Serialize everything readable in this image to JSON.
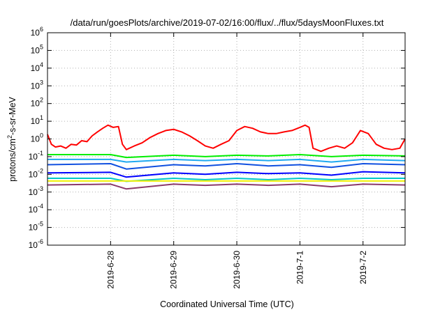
{
  "chart_data": {
    "type": "line",
    "title": "/data/run/goesPlots/archive/2019-07-02/16:00/flux/../flux/5daysMoonFluxes.txt",
    "xlabel": "Coordinated Universal Time (UTC)",
    "ylabel": "protons/cm2-s-sr-MeV",
    "ylabel_parts": [
      "protons/cm",
      "2",
      "-s-sr-MeV"
    ],
    "y_scale": "log",
    "ylim": [
      1e-06,
      1000000.0
    ],
    "x_unit": "days",
    "xlim": [
      "2019-06-27T00:00",
      "2019-07-02T16:00"
    ],
    "x_ticks": [
      {
        "value": "2019-06-28T00:00",
        "label": "2019-6-28"
      },
      {
        "value": "2019-06-29T00:00",
        "label": "2019-6-29"
      },
      {
        "value": "2019-06-30T00:00",
        "label": "2019-6-30"
      },
      {
        "value": "2019-07-01T00:00",
        "label": "2019-7-1"
      },
      {
        "value": "2019-07-02T00:00",
        "label": "2019-7-2"
      }
    ],
    "y_ticks": [
      {
        "exp": -6,
        "base": "10",
        "sup": "-6"
      },
      {
        "exp": -5,
        "base": "10",
        "sup": "-5"
      },
      {
        "exp": -4,
        "base": "10",
        "sup": "-4"
      },
      {
        "exp": -3,
        "base": "10",
        "sup": "-3"
      },
      {
        "exp": -2,
        "base": "10",
        "sup": "-2"
      },
      {
        "exp": -1,
        "base": "10",
        "sup": "-1"
      },
      {
        "exp": 0,
        "base": "10",
        "sup": "0"
      },
      {
        "exp": 1,
        "base": "10",
        "sup": "1"
      },
      {
        "exp": 2,
        "base": "10",
        "sup": "2"
      },
      {
        "exp": 3,
        "base": "10",
        "sup": "3"
      },
      {
        "exp": 4,
        "base": "10",
        "sup": "4"
      },
      {
        "exp": 5,
        "base": "10",
        "sup": "5"
      },
      {
        "exp": 6,
        "base": "10",
        "sup": "6"
      }
    ],
    "grid": true,
    "series": [
      {
        "color": "#ff0000",
        "width": 2,
        "x": [
          "2019-06-27T00:00",
          "2019-06-27T01:30",
          "2019-06-27T03:00",
          "2019-06-27T05:00",
          "2019-06-27T07:00",
          "2019-06-27T09:00",
          "2019-06-27T11:00",
          "2019-06-27T13:00",
          "2019-06-27T15:00",
          "2019-06-27T17:00",
          "2019-06-27T19:00",
          "2019-06-27T21:00",
          "2019-06-27T23:00",
          "2019-06-28T01:00",
          "2019-06-28T03:00",
          "2019-06-28T04:30",
          "2019-06-28T06:00",
          "2019-06-28T09:00",
          "2019-06-28T12:00",
          "2019-06-28T15:00",
          "2019-06-28T18:00",
          "2019-06-28T21:00",
          "2019-06-29T00:00",
          "2019-06-29T03:00",
          "2019-06-29T06:00",
          "2019-06-29T09:00",
          "2019-06-29T12:00",
          "2019-06-29T15:00",
          "2019-06-29T18:00",
          "2019-06-29T21:00",
          "2019-06-30T00:00",
          "2019-06-30T03:00",
          "2019-06-30T06:00",
          "2019-06-30T09:00",
          "2019-06-30T12:00",
          "2019-06-30T15:00",
          "2019-06-30T18:00",
          "2019-06-30T21:00",
          "2019-07-01T00:00",
          "2019-07-01T02:00",
          "2019-07-01T03:30",
          "2019-07-01T05:00",
          "2019-07-01T08:00",
          "2019-07-01T11:00",
          "2019-07-01T14:00",
          "2019-07-01T17:00",
          "2019-07-01T20:00",
          "2019-07-01T23:00",
          "2019-07-02T02:00",
          "2019-07-02T05:00",
          "2019-07-02T08:00",
          "2019-07-02T11:00",
          "2019-07-02T14:00",
          "2019-07-02T16:00"
        ],
        "values": [
          1.8,
          0.5,
          0.35,
          0.4,
          0.3,
          0.5,
          0.45,
          0.8,
          0.7,
          1.5,
          2.5,
          4.0,
          6.0,
          4.5,
          5.0,
          0.5,
          0.25,
          0.4,
          0.6,
          1.2,
          2.0,
          3.0,
          3.5,
          2.5,
          1.5,
          0.8,
          0.4,
          0.3,
          0.5,
          0.8,
          3.0,
          5.0,
          4.0,
          2.5,
          2.0,
          2.0,
          2.5,
          3.0,
          4.5,
          6.0,
          4.5,
          0.3,
          0.2,
          0.3,
          0.4,
          0.3,
          0.6,
          3.0,
          2.0,
          0.5,
          0.3,
          0.25,
          0.3,
          1.0
        ]
      },
      {
        "color": "#00ee00",
        "width": 2,
        "x": [
          "2019-06-27T00:00",
          "2019-06-28T00:00",
          "2019-06-28T06:00",
          "2019-06-29T00:00",
          "2019-06-29T12:00",
          "2019-06-30T00:00",
          "2019-06-30T12:00",
          "2019-07-01T00:00",
          "2019-07-01T12:00",
          "2019-07-02T00:00",
          "2019-07-02T16:00"
        ],
        "values": [
          0.13,
          0.13,
          0.09,
          0.12,
          0.1,
          0.12,
          0.11,
          0.13,
          0.1,
          0.12,
          0.11
        ]
      },
      {
        "color": "#1fa8f0",
        "width": 2,
        "x": [
          "2019-06-27T00:00",
          "2019-06-28T00:00",
          "2019-06-28T06:00",
          "2019-06-29T00:00",
          "2019-06-29T12:00",
          "2019-06-30T00:00",
          "2019-06-30T12:00",
          "2019-07-01T00:00",
          "2019-07-01T12:00",
          "2019-07-02T00:00",
          "2019-07-02T16:00"
        ],
        "values": [
          0.07,
          0.07,
          0.05,
          0.07,
          0.06,
          0.07,
          0.06,
          0.07,
          0.05,
          0.07,
          0.06
        ]
      },
      {
        "color": "#1050e0",
        "width": 2,
        "x": [
          "2019-06-27T00:00",
          "2019-06-28T00:00",
          "2019-06-28T06:00",
          "2019-06-29T00:00",
          "2019-06-29T12:00",
          "2019-06-30T00:00",
          "2019-06-30T12:00",
          "2019-07-01T00:00",
          "2019-07-01T12:00",
          "2019-07-02T00:00",
          "2019-07-02T16:00"
        ],
        "values": [
          0.035,
          0.04,
          0.02,
          0.035,
          0.03,
          0.04,
          0.03,
          0.035,
          0.025,
          0.04,
          0.035
        ]
      },
      {
        "color": "#0000ff",
        "width": 2,
        "x": [
          "2019-06-27T00:00",
          "2019-06-28T00:00",
          "2019-06-28T06:00",
          "2019-06-29T00:00",
          "2019-06-29T12:00",
          "2019-06-30T00:00",
          "2019-06-30T12:00",
          "2019-07-01T00:00",
          "2019-07-01T12:00",
          "2019-07-02T00:00",
          "2019-07-02T16:00"
        ],
        "values": [
          0.012,
          0.013,
          0.007,
          0.012,
          0.01,
          0.013,
          0.011,
          0.012,
          0.009,
          0.014,
          0.012
        ]
      },
      {
        "color": "#00c8c8",
        "width": 2,
        "x": [
          "2019-06-27T00:00",
          "2019-06-28T00:00",
          "2019-06-28T06:00",
          "2019-06-29T00:00",
          "2019-06-29T12:00",
          "2019-06-30T00:00",
          "2019-06-30T12:00",
          "2019-07-01T00:00",
          "2019-07-01T12:00",
          "2019-07-02T00:00",
          "2019-07-02T16:00"
        ],
        "values": [
          0.006,
          0.006,
          0.004,
          0.006,
          0.005,
          0.006,
          0.005,
          0.006,
          0.005,
          0.006,
          0.006
        ]
      },
      {
        "color": "#f0f000",
        "width": 2,
        "x": [
          "2019-06-27T00:00",
          "2019-07-02T16:00"
        ],
        "values": [
          0.0042,
          0.0042
        ]
      },
      {
        "color": "#8b3a6b",
        "width": 2,
        "x": [
          "2019-06-27T00:00",
          "2019-06-28T00:00",
          "2019-06-28T06:00",
          "2019-06-29T00:00",
          "2019-06-29T12:00",
          "2019-06-30T00:00",
          "2019-06-30T12:00",
          "2019-07-01T00:00",
          "2019-07-01T12:00",
          "2019-07-02T00:00",
          "2019-07-02T16:00"
        ],
        "values": [
          0.0025,
          0.0028,
          0.0015,
          0.0028,
          0.0024,
          0.0028,
          0.0024,
          0.0028,
          0.002,
          0.0028,
          0.0025
        ]
      }
    ]
  }
}
